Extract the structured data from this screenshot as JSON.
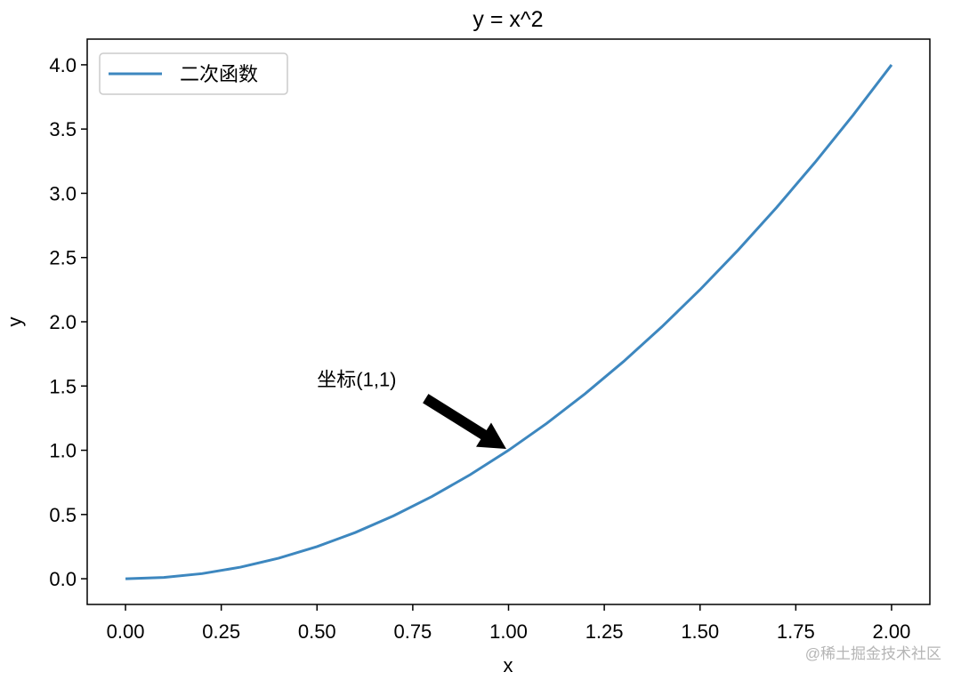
{
  "chart_data": {
    "type": "line",
    "title": "y = x^2",
    "xlabel": "x",
    "ylabel": "y",
    "x": [
      0,
      0.1,
      0.2,
      0.3,
      0.4,
      0.5,
      0.6,
      0.7,
      0.8,
      0.9,
      1,
      1.1,
      1.2,
      1.3,
      1.4,
      1.5,
      1.6,
      1.7,
      1.8,
      1.9,
      2
    ],
    "series": [
      {
        "name": "二次函数",
        "color": "#3d87bf",
        "values": [
          0,
          0.01,
          0.04,
          0.09,
          0.16,
          0.25,
          0.36,
          0.49,
          0.64,
          0.81,
          1,
          1.21,
          1.44,
          1.69,
          1.96,
          2.25,
          2.56,
          2.89,
          3.24,
          3.61,
          4
        ]
      }
    ],
    "xlim": [
      -0.1,
      2.1
    ],
    "ylim": [
      -0.2,
      4.2
    ],
    "xticks": [
      {
        "value": 0,
        "label": "0.00"
      },
      {
        "value": 0.25,
        "label": "0.25"
      },
      {
        "value": 0.5,
        "label": "0.50"
      },
      {
        "value": 0.75,
        "label": "0.75"
      },
      {
        "value": 1,
        "label": "1.00"
      },
      {
        "value": 1.25,
        "label": "1.25"
      },
      {
        "value": 1.5,
        "label": "1.50"
      },
      {
        "value": 1.75,
        "label": "1.75"
      },
      {
        "value": 2,
        "label": "2.00"
      }
    ],
    "yticks": [
      {
        "value": 0,
        "label": "0.0"
      },
      {
        "value": 0.5,
        "label": "0.5"
      },
      {
        "value": 1,
        "label": "1.0"
      },
      {
        "value": 1.5,
        "label": "1.5"
      },
      {
        "value": 2,
        "label": "2.0"
      },
      {
        "value": 2.5,
        "label": "2.5"
      },
      {
        "value": 3,
        "label": "3.0"
      },
      {
        "value": 3.5,
        "label": "3.5"
      },
      {
        "value": 4,
        "label": "4.0"
      }
    ],
    "grid": false,
    "legend": "upper left",
    "annotation": {
      "text": "坐标(1,1)",
      "xy": [
        1,
        1
      ],
      "xytext": [
        0.5,
        1.5
      ]
    },
    "watermark": "@稀土掘金技术社区"
  }
}
